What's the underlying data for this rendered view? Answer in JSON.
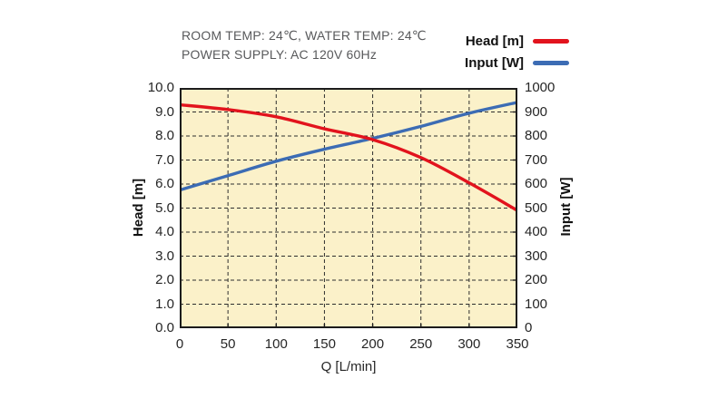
{
  "chart_data": {
    "type": "line",
    "annotations": [
      "ROOM TEMP: 24℃, WATER TEMP: 24℃",
      "POWER SUPPLY: AC 120V 60Hz"
    ],
    "xlabel": "Q [L/min]",
    "ylabel_left": "Head [m]",
    "ylabel_right": "Input [W]",
    "x": [
      0,
      50,
      100,
      150,
      200,
      250,
      300,
      350
    ],
    "series": [
      {
        "name": "Head [m]",
        "axis": "left",
        "color": "#e2131d",
        "values": [
          9.3,
          9.1,
          8.8,
          8.3,
          7.85,
          7.1,
          6.05,
          4.9
        ]
      },
      {
        "name": "Input [W]",
        "axis": "right",
        "color": "#3c6cb4",
        "values": [
          575,
          635,
          695,
          745,
          790,
          840,
          895,
          940
        ]
      }
    ],
    "xlim": [
      0,
      350
    ],
    "ylim_left": [
      0,
      10
    ],
    "ylim_right": [
      0,
      1000
    ],
    "xticks": [
      "0",
      "50",
      "100",
      "150",
      "200",
      "250",
      "300",
      "350"
    ],
    "yticks_left": [
      "10.0",
      "9.0",
      "8.0",
      "7.0",
      "6.0",
      "5.0",
      "4.0",
      "3.0",
      "2.0",
      "1.0",
      "0.0"
    ],
    "yticks_right": [
      "1000",
      "900",
      "800",
      "700",
      "600",
      "500",
      "400",
      "300",
      "200",
      "100",
      "0"
    ],
    "grid": "dashed-both",
    "legend_position": "top-right",
    "colors": {
      "plot_bg": "#fbf1c9",
      "grid": "#2e2e2e",
      "border": "#1c1c1c",
      "tick_text": "#262626",
      "header_text": "#58595b"
    }
  }
}
